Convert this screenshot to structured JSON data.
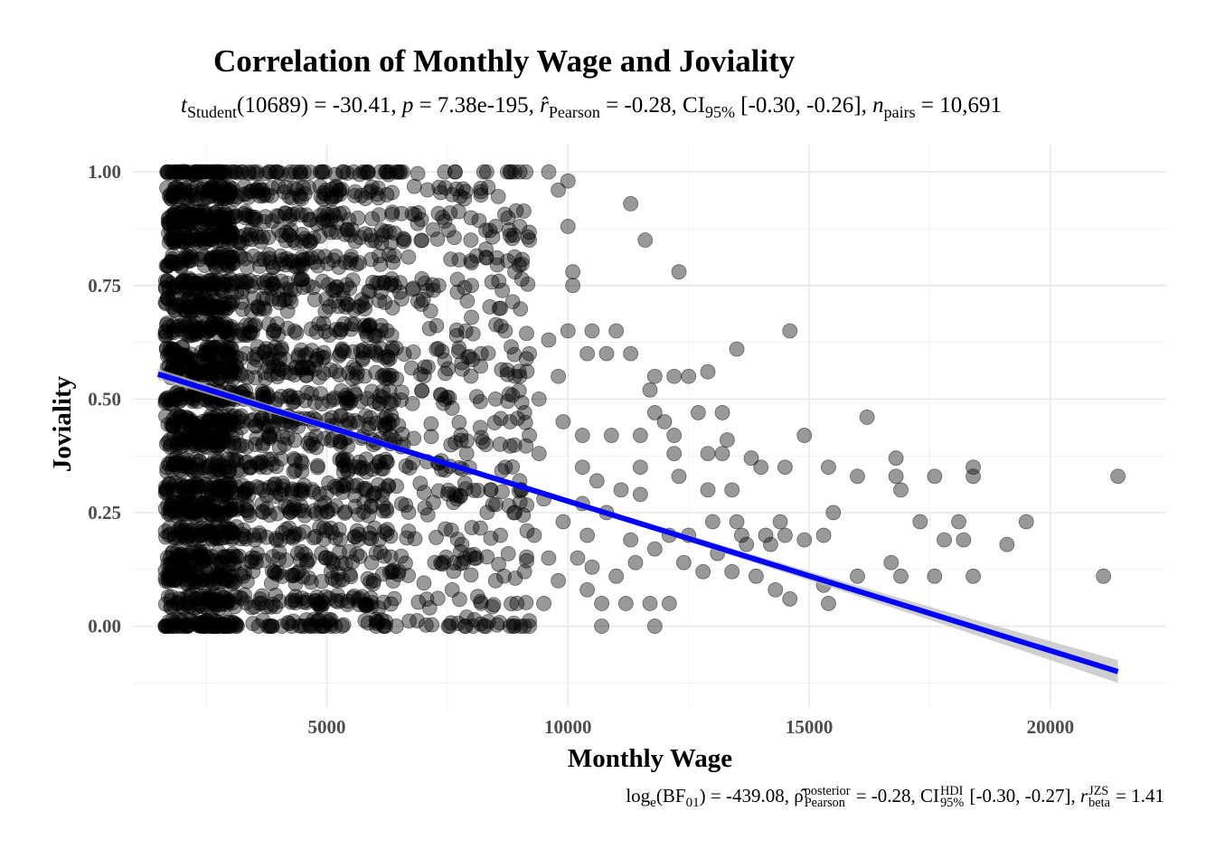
{
  "chart_data": {
    "type": "scatter",
    "title": "Correlation of Monthly Wage and Joviality",
    "subtitle": {
      "prefix": "t",
      "prefix_sub": "Student",
      "df_t": "(10689) = -30.41, ",
      "p_sym": "p",
      "p_val": " = 7.38e-195, ",
      "r_sym": "r̂",
      "r_sub": "Pearson",
      "r_val": " = -0.28, CI",
      "ci_sub": "95%",
      "ci_val": " [-0.30, -0.26], ",
      "n_sym": "n",
      "n_sub": "pairs",
      "n_val": " = 10,691"
    },
    "caption": {
      "log": "log",
      "log_sub": "e",
      "bf": "(BF",
      "bf_sub": "01",
      "bf_val": ") = -439.08, ",
      "rho": "ρ̂",
      "rho_sup": "posterior",
      "rho_sub": "Pearson",
      "rho_val": " = -0.28, CI",
      "ci_sup": "HDI",
      "ci_sub": "95%",
      "ci_val": " [-0.30, -0.27], ",
      "r": "r",
      "r_sup": "JZS",
      "r_sub": "beta",
      "r_val": " = 1.41"
    },
    "xlabel": "Monthly Wage",
    "ylabel": "Joviality",
    "xlim": [
      1000,
      22400
    ],
    "ylim": [
      -0.18,
      1.06
    ],
    "x_ticks": [
      5000,
      10000,
      15000,
      20000
    ],
    "x_tick_labels": [
      "5000",
      "10000",
      "15000",
      "20000"
    ],
    "y_ticks": [
      0.0,
      0.25,
      0.5,
      0.75,
      1.0
    ],
    "y_tick_labels": [
      "0.00",
      "0.25",
      "0.50",
      "0.75",
      "1.00"
    ],
    "grid": true,
    "point_color": "#000000",
    "point_opacity": 0.4,
    "fit": {
      "type": "linear",
      "color": "#0000ff",
      "band_color": "#bfbfbf",
      "x": [
        1500,
        21400
      ],
      "y": [
        0.555,
        -0.1
      ],
      "ci_halfwidth_at_ends": [
        0.012,
        0.025
      ]
    },
    "points": [
      [
        9600,
        1.0
      ],
      [
        10000,
        0.98
      ],
      [
        9800,
        0.96
      ],
      [
        10000,
        0.88
      ],
      [
        10100,
        0.78
      ],
      [
        10100,
        0.75
      ],
      [
        11300,
        0.93
      ],
      [
        11600,
        0.85
      ],
      [
        12300,
        0.78
      ],
      [
        9200,
        0.85
      ],
      [
        9000,
        0.88
      ],
      [
        8800,
        0.86
      ],
      [
        8500,
        0.88
      ],
      [
        8300,
        0.83
      ],
      [
        8000,
        0.8
      ],
      [
        7600,
        0.95
      ],
      [
        7400,
        0.9
      ],
      [
        10000,
        0.65
      ],
      [
        10500,
        0.65
      ],
      [
        11000,
        0.65
      ],
      [
        10400,
        0.6
      ],
      [
        10800,
        0.6
      ],
      [
        11300,
        0.6
      ],
      [
        9600,
        0.63
      ],
      [
        9200,
        0.6
      ],
      [
        9000,
        0.55
      ],
      [
        9400,
        0.5
      ],
      [
        9800,
        0.55
      ],
      [
        9900,
        0.45
      ],
      [
        11800,
        0.55
      ],
      [
        11700,
        0.52
      ],
      [
        12200,
        0.55
      ],
      [
        12500,
        0.55
      ],
      [
        12900,
        0.56
      ],
      [
        13500,
        0.61
      ],
      [
        14600,
        0.65
      ],
      [
        10300,
        0.42
      ],
      [
        10900,
        0.42
      ],
      [
        11500,
        0.42
      ],
      [
        11800,
        0.47
      ],
      [
        12000,
        0.45
      ],
      [
        12200,
        0.42
      ],
      [
        12700,
        0.47
      ],
      [
        13200,
        0.47
      ],
      [
        13300,
        0.41
      ],
      [
        13200,
        0.38
      ],
      [
        12900,
        0.38
      ],
      [
        12200,
        0.38
      ],
      [
        11500,
        0.35
      ],
      [
        10300,
        0.35
      ],
      [
        10600,
        0.32
      ],
      [
        11100,
        0.3
      ],
      [
        11500,
        0.29
      ],
      [
        12300,
        0.33
      ],
      [
        12900,
        0.3
      ],
      [
        13400,
        0.3
      ],
      [
        14000,
        0.35
      ],
      [
        13800,
        0.37
      ],
      [
        14500,
        0.35
      ],
      [
        14900,
        0.42
      ],
      [
        15400,
        0.35
      ],
      [
        16200,
        0.46
      ],
      [
        16000,
        0.33
      ],
      [
        16800,
        0.37
      ],
      [
        16800,
        0.33
      ],
      [
        16900,
        0.3
      ],
      [
        17600,
        0.33
      ],
      [
        18400,
        0.35
      ],
      [
        18400,
        0.33
      ],
      [
        21400,
        0.33
      ],
      [
        13000,
        0.23
      ],
      [
        13500,
        0.23
      ],
      [
        13600,
        0.2
      ],
      [
        14100,
        0.2
      ],
      [
        14400,
        0.23
      ],
      [
        14500,
        0.2
      ],
      [
        14900,
        0.19
      ],
      [
        15500,
        0.25
      ],
      [
        15300,
        0.2
      ],
      [
        14200,
        0.18
      ],
      [
        13700,
        0.18
      ],
      [
        13100,
        0.16
      ],
      [
        12500,
        0.2
      ],
      [
        12100,
        0.2
      ],
      [
        11800,
        0.17
      ],
      [
        11300,
        0.19
      ],
      [
        11400,
        0.14
      ],
      [
        11000,
        0.11
      ],
      [
        12400,
        0.14
      ],
      [
        12800,
        0.12
      ],
      [
        13400,
        0.12
      ],
      [
        13900,
        0.11
      ],
      [
        14300,
        0.08
      ],
      [
        14600,
        0.06
      ],
      [
        15300,
        0.09
      ],
      [
        15400,
        0.05
      ],
      [
        16000,
        0.11
      ],
      [
        16700,
        0.14
      ],
      [
        16900,
        0.11
      ],
      [
        17600,
        0.11
      ],
      [
        17300,
        0.23
      ],
      [
        17800,
        0.19
      ],
      [
        18100,
        0.23
      ],
      [
        18200,
        0.19
      ],
      [
        18400,
        0.11
      ],
      [
        19100,
        0.18
      ],
      [
        19500,
        0.23
      ],
      [
        21100,
        0.11
      ],
      [
        10700,
        0.05
      ],
      [
        11200,
        0.05
      ],
      [
        11700,
        0.05
      ],
      [
        12100,
        0.05
      ],
      [
        10700,
        0.0
      ],
      [
        11800,
        0.0
      ],
      [
        10400,
        0.08
      ],
      [
        9500,
        0.05
      ],
      [
        9200,
        0.0
      ],
      [
        8800,
        0.0
      ],
      [
        9800,
        0.1
      ],
      [
        9600,
        0.15
      ],
      [
        9300,
        0.2
      ],
      [
        9900,
        0.23
      ],
      [
        10300,
        0.27
      ],
      [
        10400,
        0.2
      ],
      [
        10200,
        0.15
      ],
      [
        10800,
        0.25
      ],
      [
        10500,
        0.13
      ],
      [
        8500,
        0.1
      ],
      [
        8200,
        0.05
      ],
      [
        8100,
        0.15
      ],
      [
        8600,
        0.2
      ],
      [
        8900,
        0.25
      ],
      [
        8400,
        0.3
      ],
      [
        8700,
        0.35
      ],
      [
        8300,
        0.4
      ],
      [
        8800,
        0.45
      ],
      [
        8500,
        0.5
      ],
      [
        8900,
        0.55
      ],
      [
        8200,
        0.6
      ],
      [
        8700,
        0.65
      ],
      [
        8600,
        0.7
      ],
      [
        8000,
        0.75
      ],
      [
        8900,
        0.78
      ],
      [
        8000,
        0.68
      ],
      [
        7800,
        0.58
      ],
      [
        7600,
        0.48
      ],
      [
        7900,
        0.38
      ],
      [
        7700,
        0.28
      ],
      [
        7800,
        0.18
      ],
      [
        7600,
        0.08
      ],
      [
        7900,
        0.02
      ],
      [
        9200,
        0.42
      ],
      [
        9000,
        0.32
      ],
      [
        9400,
        0.38
      ],
      [
        9100,
        0.47
      ],
      [
        9500,
        0.28
      ],
      [
        9100,
        0.12
      ]
    ]
  }
}
